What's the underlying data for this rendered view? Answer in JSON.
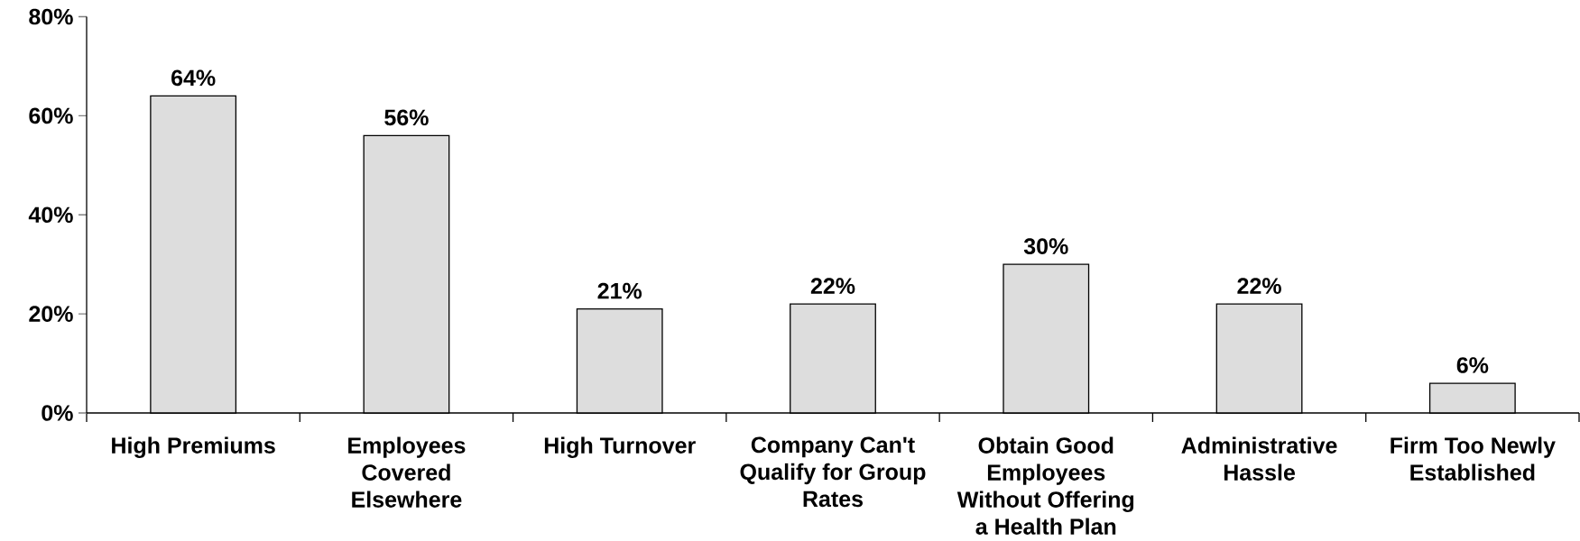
{
  "chart_data": {
    "type": "bar",
    "categories": [
      "High Premiums",
      "Employees Covered Elsewhere",
      "High Turnover",
      "Company Can't Qualify for Group Rates",
      "Obtain Good Employees Without Offering a Health Plan",
      "Administrative Hassle",
      "Firm Too Newly Established"
    ],
    "values": [
      64,
      56,
      21,
      22,
      30,
      22,
      6
    ],
    "value_labels": [
      "64%",
      "56%",
      "21%",
      "22%",
      "30%",
      "22%",
      "6%"
    ],
    "color": "#dddddd",
    "ylim": [
      0,
      80
    ],
    "yticks": [
      {
        "value": 0,
        "label": "0%"
      },
      {
        "value": 20,
        "label": "20%"
      },
      {
        "value": 40,
        "label": "40%"
      },
      {
        "value": 60,
        "label": "60%"
      },
      {
        "value": 80,
        "label": "80%"
      }
    ]
  }
}
